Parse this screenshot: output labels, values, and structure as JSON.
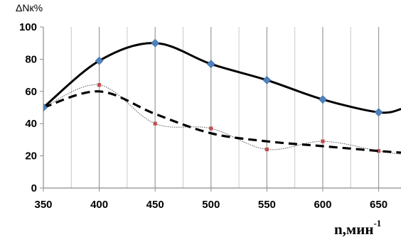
{
  "chart_data": {
    "type": "line",
    "ylabel": "ΔNк%",
    "xlabel": "n,мин",
    "xlabel_superscript": "-1",
    "xlim": [
      350,
      670
    ],
    "ylim": [
      0,
      100
    ],
    "x_ticks": [
      "350",
      "400",
      "450",
      "500",
      "550",
      "600",
      "650"
    ],
    "y_ticks": [
      "0",
      "20",
      "40",
      "60",
      "80",
      "100"
    ],
    "grid": "vertical",
    "legend": "none",
    "series": [
      {
        "style": "solid-black-with-blue-diamond-markers",
        "line_color": "#000000",
        "marker_color": "#4f81bd",
        "points": [
          [
            350,
            50
          ],
          [
            400,
            79
          ],
          [
            450,
            90
          ],
          [
            500,
            77
          ],
          [
            550,
            67
          ],
          [
            600,
            55
          ],
          [
            650,
            47
          ]
        ],
        "tail": [
          [
            670,
            49
          ]
        ]
      },
      {
        "style": "dashed-black",
        "line_color": "#000000",
        "points": [
          [
            350,
            50
          ],
          [
            400,
            60
          ],
          [
            450,
            46
          ],
          [
            500,
            34
          ],
          [
            550,
            29
          ],
          [
            600,
            26
          ],
          [
            650,
            23
          ]
        ],
        "tail": [
          [
            670,
            22
          ]
        ]
      },
      {
        "style": "thin-dotted-with-red-square-markers",
        "line_color": "#555555",
        "marker_color": "#c0504d",
        "points": [
          [
            350,
            50
          ],
          [
            400,
            64
          ],
          [
            450,
            40
          ],
          [
            500,
            37
          ],
          [
            550,
            24
          ],
          [
            600,
            29
          ],
          [
            650,
            23
          ]
        ],
        "tail": [
          [
            670,
            21
          ]
        ]
      }
    ]
  }
}
